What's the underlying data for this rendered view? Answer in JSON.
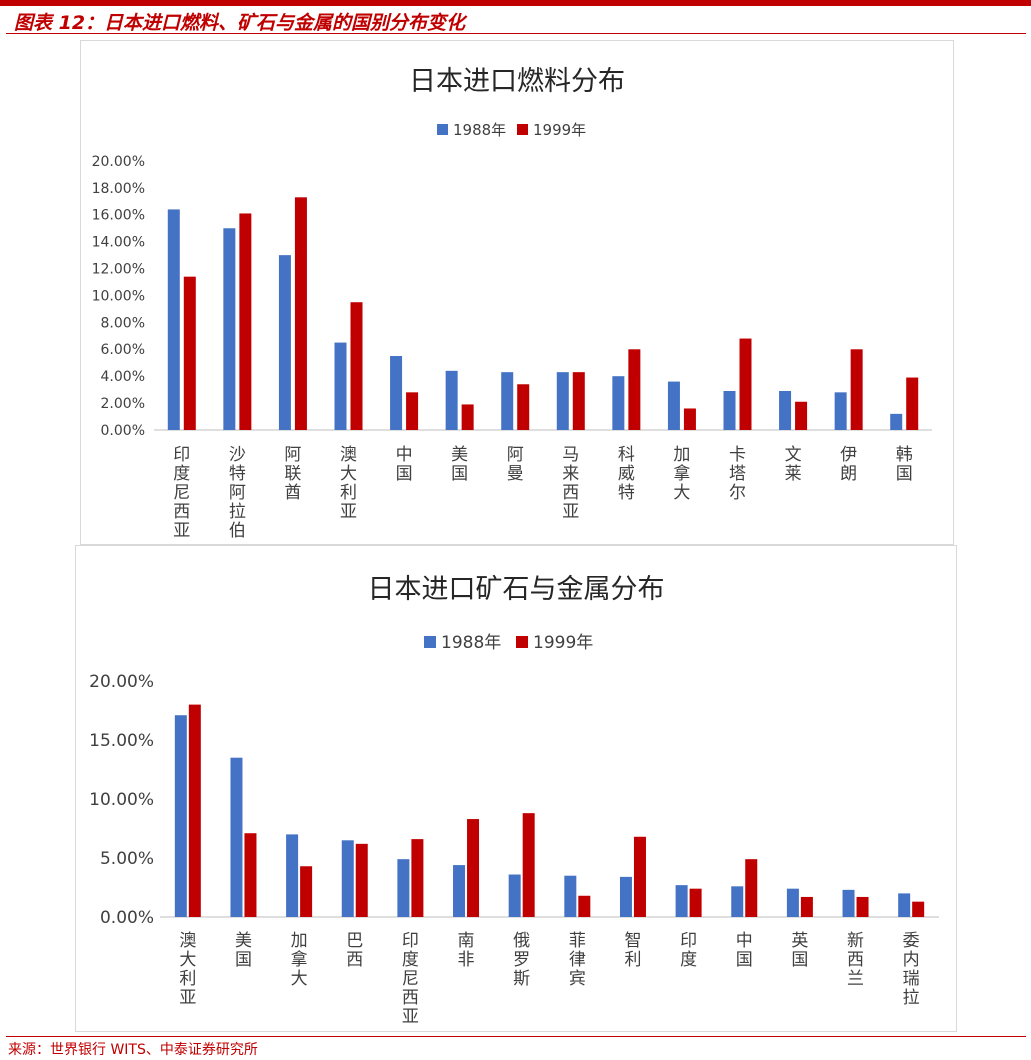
{
  "figure_title": "图表 12：日本进口燃料、矿石与金属的国别分布变化",
  "source_note": "来源：世界银行 WITS、中泰证券研究所",
  "colors": {
    "series_1988": "#4472c4",
    "series_1999": "#c00000",
    "accent": "#c00000",
    "axis": "#bfbfbf"
  },
  "chart_data": [
    {
      "type": "bar",
      "title": "日本进口燃料分布",
      "legend_position": "top-center",
      "grid": false,
      "ylim": [
        0,
        20
      ],
      "y_ticks": [
        "20.00%",
        "18.00%",
        "16.00%",
        "14.00%",
        "12.00%",
        "10.00%",
        "8.00%",
        "6.00%",
        "4.00%",
        "2.00%",
        "0.00%"
      ],
      "y_tick_values": [
        20,
        18,
        16,
        14,
        12,
        10,
        8,
        6,
        4,
        2,
        0
      ],
      "categories": [
        "印度尼西亚",
        "沙特阿拉伯",
        "阿联酋",
        "澳大利亚",
        "中国",
        "美国",
        "阿曼",
        "马来西亚",
        "科威特",
        "加拿大",
        "卡塔尔",
        "文莱",
        "伊朗",
        "韩国"
      ],
      "series": [
        {
          "name": "1988年",
          "values": [
            16.4,
            15.0,
            13.0,
            6.5,
            5.5,
            4.4,
            4.3,
            4.3,
            4.0,
            3.6,
            2.9,
            2.9,
            2.8,
            1.2
          ]
        },
        {
          "name": "1999年",
          "values": [
            11.4,
            16.1,
            17.3,
            9.5,
            2.8,
            1.9,
            3.4,
            4.3,
            6.0,
            1.6,
            6.8,
            2.1,
            6.0,
            3.9
          ]
        }
      ]
    },
    {
      "type": "bar",
      "title": "日本进口矿石与金属分布",
      "legend_position": "top-center",
      "grid": false,
      "ylim": [
        0,
        20
      ],
      "y_ticks": [
        "20.00%",
        "15.00%",
        "10.00%",
        "5.00%",
        "0.00%"
      ],
      "y_tick_values": [
        20,
        15,
        10,
        5,
        0
      ],
      "categories": [
        "澳大利亚",
        "美国",
        "加拿大",
        "巴西",
        "印度尼西亚",
        "南非",
        "俄罗斯",
        "菲律宾",
        "智利",
        "印度",
        "中国",
        "英国",
        "新西兰",
        "委内瑞拉"
      ],
      "series": [
        {
          "name": "1988年",
          "values": [
            17.1,
            13.5,
            7.0,
            6.5,
            4.9,
            4.4,
            3.6,
            3.5,
            3.4,
            2.7,
            2.6,
            2.4,
            2.3,
            2.0
          ]
        },
        {
          "name": "1999年",
          "values": [
            18.0,
            7.1,
            4.3,
            6.2,
            6.6,
            8.3,
            8.8,
            1.8,
            6.8,
            2.4,
            4.9,
            1.7,
            1.7,
            1.3
          ]
        }
      ]
    }
  ]
}
